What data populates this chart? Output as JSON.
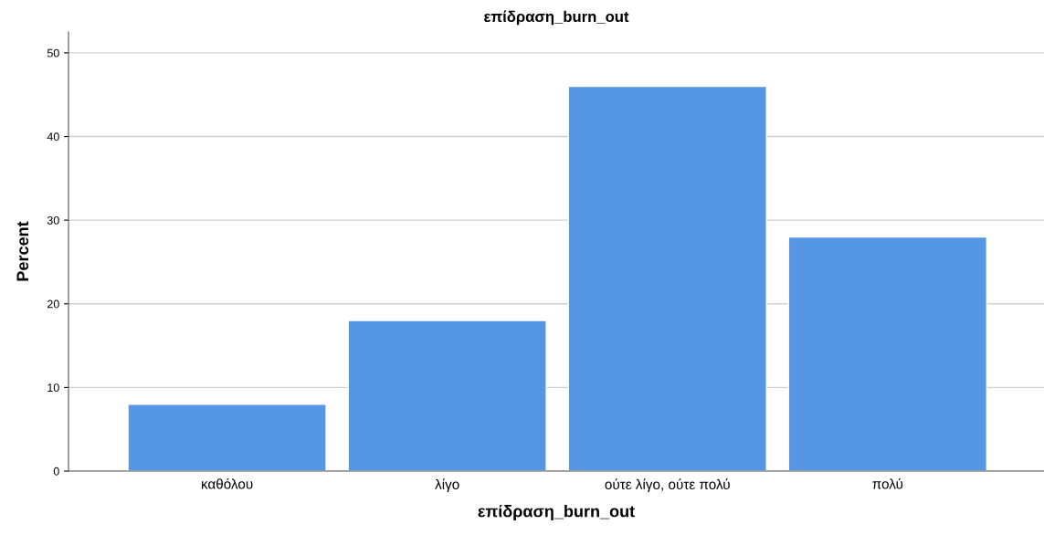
{
  "chart_data": {
    "type": "bar",
    "title": "επίδραση_burn_out",
    "xlabel": "επίδραση_burn_out",
    "ylabel": "Percent",
    "categories": [
      "καθόλου",
      "λίγο",
      "ούτε λίγο, ούτε πολύ",
      "πολύ"
    ],
    "values": [
      8,
      18,
      46,
      28
    ],
    "color": "#5596e5",
    "ylim": [
      0,
      52.5
    ],
    "yticks": [
      0,
      10,
      20,
      30,
      40,
      50
    ],
    "grid": "y"
  }
}
